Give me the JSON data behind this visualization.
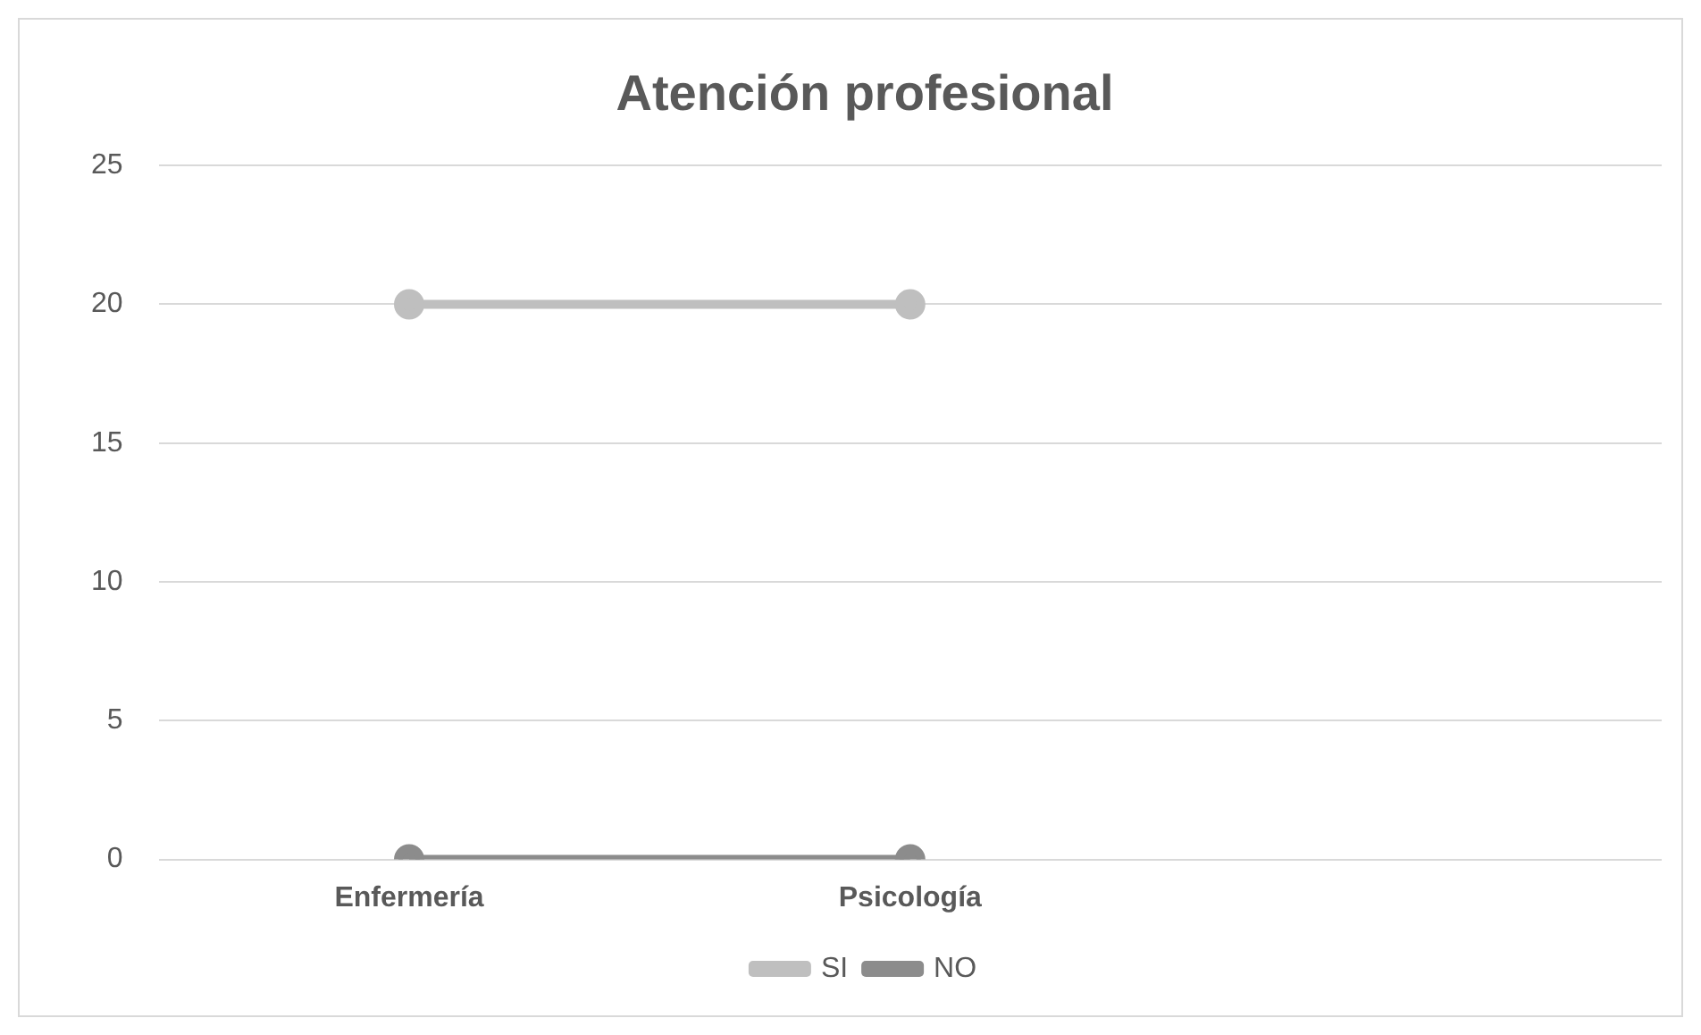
{
  "chart_data": {
    "type": "line",
    "title": "Atención profesional",
    "categories": [
      "Enfermería",
      "Psicología",
      null
    ],
    "series": [
      {
        "name": "SI",
        "color": "#bfbfbf",
        "values": [
          20,
          20,
          null
        ]
      },
      {
        "name": "NO",
        "color": "#8c8c8c",
        "values": [
          0,
          0,
          null
        ]
      }
    ],
    "ylim": [
      0,
      25
    ],
    "yticks": [
      0,
      5,
      10,
      15,
      20,
      25
    ],
    "grid": "y",
    "legend": "bottom",
    "marker": "circle",
    "line_style": "solid"
  }
}
